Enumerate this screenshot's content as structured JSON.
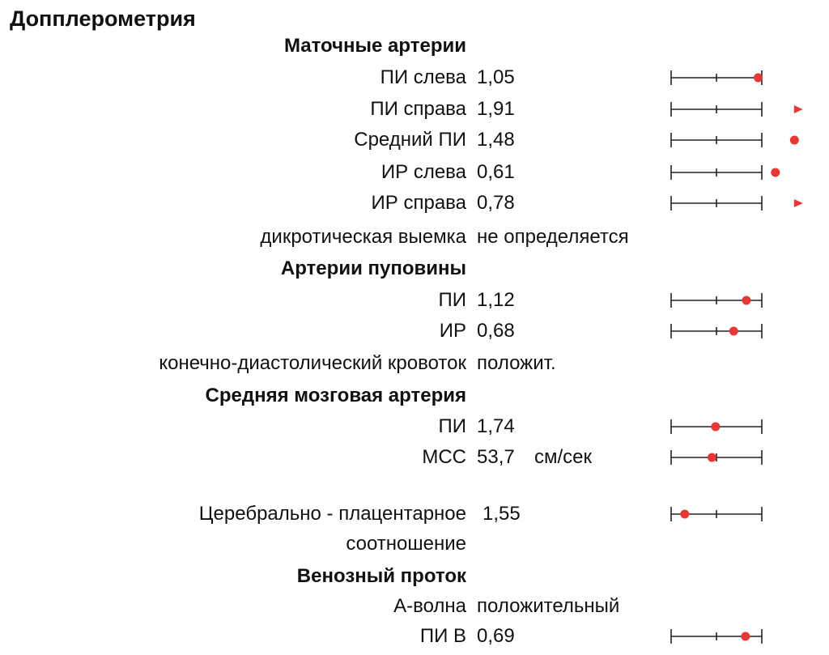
{
  "report": {
    "title": "Допплерометрия",
    "colors": {
      "marker": "#e53935",
      "axis": "#222222",
      "text": "#111111"
    }
  },
  "sections": {
    "uterine": {
      "title": "Маточные артерии",
      "rows": [
        {
          "label": "ПИ слева",
          "value": "1,05",
          "marker": {
            "type": "dot",
            "level": 0.96
          }
        },
        {
          "label": "ПИ справа",
          "value": "1,91",
          "marker": {
            "type": "arrow",
            "level": 1.4
          }
        },
        {
          "label": "Средний ПИ",
          "value": "1,48",
          "marker": {
            "type": "dot",
            "level": 1.36
          }
        },
        {
          "label": "ИР слева",
          "value": "0,61",
          "marker": {
            "type": "dot",
            "level": 1.15
          }
        },
        {
          "label": "ИР справа",
          "value": "0,78",
          "marker": {
            "type": "arrow",
            "level": 1.4
          }
        },
        {
          "label": "дикротическая выемка",
          "value": "не определяется"
        }
      ]
    },
    "umbilical": {
      "title": "Артерии пуповины",
      "rows": [
        {
          "label": "ПИ",
          "value": "1,12",
          "marker": {
            "type": "dot",
            "level": 0.83
          }
        },
        {
          "label": "ИР",
          "value": "0,68",
          "marker": {
            "type": "dot",
            "level": 0.69
          }
        },
        {
          "label": "конечно-диастолический кровоток",
          "value": "положит."
        }
      ]
    },
    "mca": {
      "title": "Средняя мозговая артерия",
      "rows": [
        {
          "label": "ПИ",
          "value": "1,74",
          "marker": {
            "type": "dot",
            "level": 0.49
          }
        },
        {
          "label": "МСС",
          "value": "53,7",
          "unit": "см/сек",
          "marker": {
            "type": "dot",
            "level": 0.45
          }
        }
      ]
    },
    "cpr": {
      "label_line1": "Церебрально - плацентарное",
      "label_line2": "соотношение",
      "value": "1,55",
      "marker": {
        "type": "dot",
        "level": 0.15
      }
    },
    "ductus": {
      "title": "Венозный проток",
      "rows": [
        {
          "label": "А-волна",
          "value": "положительный"
        },
        {
          "label": "ПИ В",
          "value": "0,69",
          "marker": {
            "type": "dot",
            "level": 0.82
          }
        }
      ]
    }
  }
}
